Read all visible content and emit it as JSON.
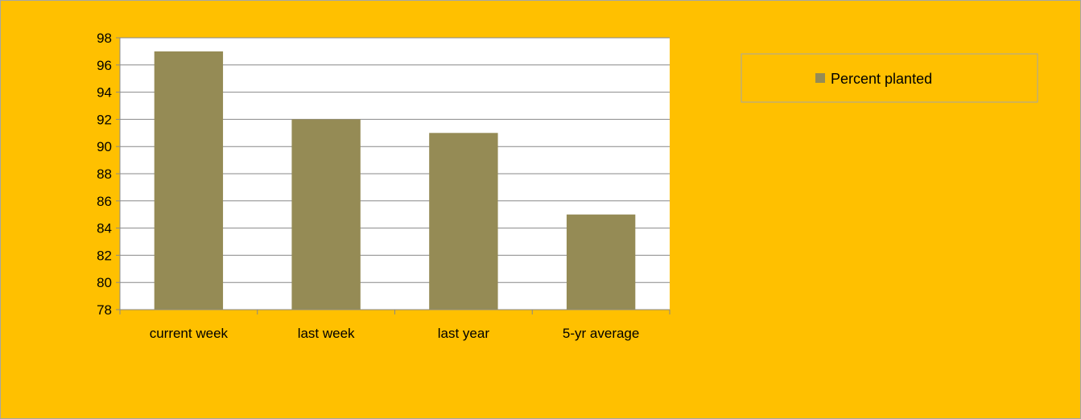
{
  "chart_data": {
    "type": "bar",
    "categories": [
      "current week",
      "last week",
      "last year",
      "5-yr average"
    ],
    "series": [
      {
        "name": "Percent planted",
        "values": [
          97,
          92,
          91,
          85
        ]
      }
    ],
    "title": "",
    "xlabel": "",
    "ylabel": "",
    "ylim": [
      78,
      98
    ],
    "ytick_step": 2,
    "yticks": [
      "78",
      "80",
      "82",
      "84",
      "86",
      "88",
      "90",
      "92",
      "94",
      "96",
      "98"
    ],
    "grid": "horizontal",
    "legend_position": "right",
    "colors": {
      "bar": "#958B55",
      "background": "#FFC000",
      "plot_background": "#FFFFFF",
      "gridline": "#888888"
    }
  }
}
